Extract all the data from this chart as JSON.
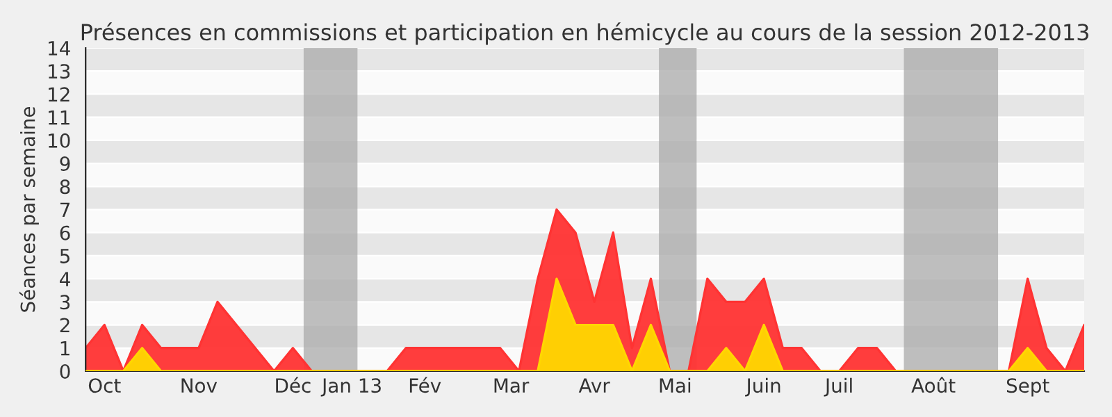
{
  "chart_data": {
    "type": "area",
    "title": "Présences en commissions et participation en hémicycle au cours de la session 2012-2013",
    "ylabel": "Séances par semaine",
    "x": [
      "2012-09-24",
      "2012-10-01",
      "2012-10-08",
      "2012-10-15",
      "2012-10-22",
      "2012-10-29",
      "2012-11-05",
      "2012-11-12",
      "2012-11-19",
      "2012-11-26",
      "2012-12-03",
      "2012-12-10",
      "2012-12-17",
      "2012-12-24",
      "2012-12-31",
      "2013-01-07",
      "2013-01-14",
      "2013-01-21",
      "2013-01-28",
      "2013-02-04",
      "2013-02-11",
      "2013-02-18",
      "2013-02-25",
      "2013-03-04",
      "2013-03-11",
      "2013-03-18",
      "2013-03-25",
      "2013-04-01",
      "2013-04-08",
      "2013-04-15",
      "2013-04-22",
      "2013-04-29",
      "2013-05-06",
      "2013-05-13",
      "2013-05-20",
      "2013-05-27",
      "2013-06-03",
      "2013-06-10",
      "2013-06-17",
      "2013-06-24",
      "2013-07-01",
      "2013-07-08",
      "2013-07-15",
      "2013-07-22",
      "2013-07-29",
      "2013-08-05",
      "2013-08-12",
      "2013-08-19",
      "2013-08-26",
      "2013-09-02",
      "2013-09-09",
      "2013-09-16",
      "2013-09-23",
      "2013-09-30"
    ],
    "series": [
      {
        "color": "#ff3333",
        "values": [
          1,
          2,
          0,
          2,
          1,
          1,
          1,
          3,
          2,
          1,
          0,
          1,
          0,
          0,
          0,
          0,
          0,
          1,
          1,
          1,
          1,
          1,
          1,
          0,
          4,
          7,
          6,
          3,
          6,
          1,
          4,
          0,
          0,
          4,
          3,
          3,
          4,
          1,
          1,
          0,
          0,
          1,
          1,
          0,
          0,
          0,
          0,
          0,
          0,
          0,
          4,
          1,
          0,
          2
        ]
      },
      {
        "color": "#ffd700",
        "values": [
          0,
          0,
          0,
          1,
          0,
          0,
          0,
          0,
          0,
          0,
          0,
          0,
          0,
          0,
          0,
          0,
          0,
          0,
          0,
          0,
          0,
          0,
          0,
          0,
          0,
          4,
          2,
          2,
          2,
          0,
          2,
          0,
          0,
          0,
          1,
          0,
          2,
          0,
          0,
          0,
          0,
          0,
          0,
          0,
          0,
          0,
          0,
          0,
          0,
          0,
          1,
          0,
          0,
          0
        ]
      }
    ],
    "xlim": [
      "2012-09-24",
      "2013-09-30"
    ],
    "xticks": [
      {
        "value": "2012-10-01",
        "label": "Oct"
      },
      {
        "value": "2012-11-05",
        "label": "Nov"
      },
      {
        "value": "2012-12-10",
        "label": "Déc"
      },
      {
        "value": "2013-01-01",
        "label": "Jan 13"
      },
      {
        "value": "2013-01-28",
        "label": "Fév"
      },
      {
        "value": "2013-03-01",
        "label": "Mar"
      },
      {
        "value": "2013-04-01",
        "label": "Avr"
      },
      {
        "value": "2013-05-01",
        "label": "Mai"
      },
      {
        "value": "2013-06-03",
        "label": "Juin"
      },
      {
        "value": "2013-07-01",
        "label": "Juil"
      },
      {
        "value": "2013-08-05",
        "label": "Août"
      },
      {
        "value": "2013-09-09",
        "label": "Sept"
      }
    ],
    "ylim": [
      0,
      14
    ],
    "yticks": [
      0,
      1,
      2,
      3,
      4,
      5,
      6,
      7,
      8,
      9,
      10,
      11,
      12,
      13,
      14
    ],
    "bands": [
      {
        "axis": "x",
        "from": "2012-12-14",
        "to": "2013-01-03",
        "color": "#aaaaaa"
      },
      {
        "axis": "x",
        "from": "2013-04-25",
        "to": "2013-05-09",
        "color": "#aaaaaa"
      },
      {
        "axis": "x",
        "from": "2013-07-25",
        "to": "2013-08-29",
        "color": "#aaaaaa"
      }
    ],
    "grid": "y",
    "legend": false
  }
}
